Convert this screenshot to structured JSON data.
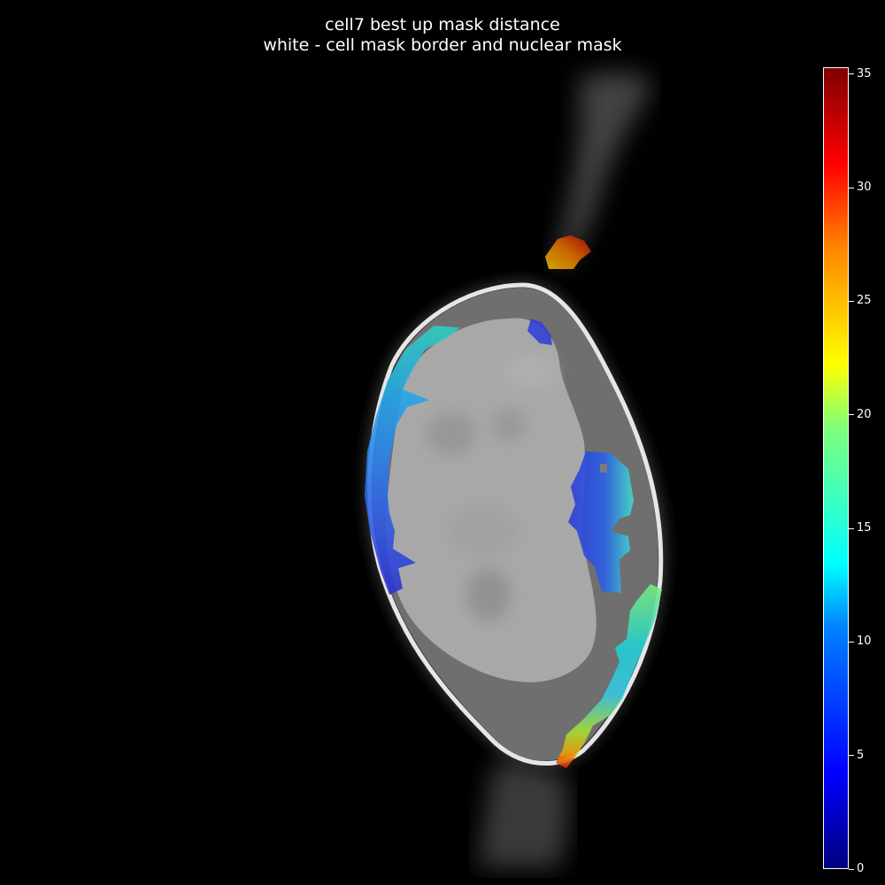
{
  "title": {
    "line1": "cell7 best up mask distance",
    "line2": "white - cell mask border and nuclear mask"
  },
  "colorbar": {
    "min": 0,
    "max": 35.3,
    "ticks": [
      "0",
      "5",
      "10",
      "15",
      "20",
      "25",
      "30",
      "35"
    ],
    "colormap": "jet"
  }
}
